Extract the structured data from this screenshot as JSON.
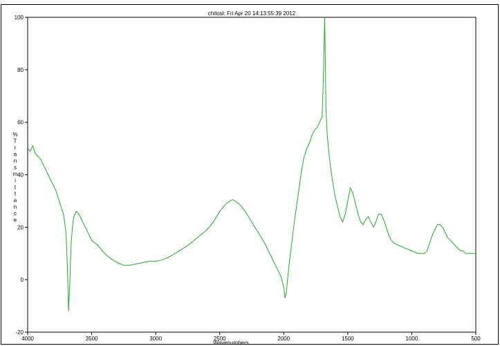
{
  "chart_data": {
    "type": "line",
    "title": "chitosl:  Fri Apr 20 14:13:55:39 2012",
    "xlabel": "Wavenumbers",
    "ylabel": "%Transmittance",
    "xlim": [
      4000,
      500
    ],
    "ylim": [
      -20,
      100
    ],
    "x_ticks": [
      4000,
      3500,
      3000,
      2500,
      2000,
      1500,
      1000,
      500
    ],
    "y_ticks": [
      -20,
      0,
      20,
      40,
      60,
      80,
      100
    ],
    "grid": false,
    "series_color": "#22aa22",
    "series": [
      {
        "x": [
          4000,
          3980,
          3960,
          3940,
          3920,
          3900,
          3880,
          3860,
          3840,
          3820,
          3800,
          3780,
          3760,
          3740,
          3720,
          3700,
          3690,
          3680,
          3670,
          3660,
          3650,
          3640,
          3620,
          3600,
          3580,
          3560,
          3540,
          3520,
          3500,
          3450,
          3400,
          3350,
          3300,
          3250,
          3200,
          3150,
          3100,
          3050,
          3000,
          2950,
          2900,
          2850,
          2800,
          2750,
          2700,
          2650,
          2600,
          2550,
          2500,
          2450,
          2420,
          2400,
          2380,
          2350,
          2300,
          2250,
          2200,
          2150,
          2100,
          2060,
          2040,
          2020,
          2000,
          1990,
          1980,
          1970,
          1960,
          1940,
          1920,
          1900,
          1880,
          1860,
          1840,
          1820,
          1800,
          1780,
          1760,
          1740,
          1720,
          1700,
          1690,
          1680,
          1670,
          1660,
          1650,
          1640,
          1620,
          1600,
          1580,
          1560,
          1540,
          1520,
          1500,
          1480,
          1460,
          1440,
          1420,
          1400,
          1380,
          1360,
          1340,
          1320,
          1300,
          1280,
          1260,
          1240,
          1220,
          1200,
          1180,
          1160,
          1140,
          1100,
          1050,
          1000,
          950,
          900,
          880,
          860,
          840,
          820,
          800,
          780,
          760,
          740,
          720,
          700,
          680,
          660,
          640,
          620,
          600,
          580,
          560,
          540,
          520,
          500
        ],
        "y": [
          50,
          49,
          51,
          48,
          47,
          46,
          44,
          42,
          40,
          38,
          36,
          34,
          31,
          28,
          25,
          18,
          5,
          -12,
          0,
          14,
          20,
          24,
          26,
          25,
          23,
          21,
          19,
          17,
          15,
          13,
          10,
          8,
          6.5,
          5.5,
          5.5,
          6,
          6.5,
          7,
          7,
          7.5,
          8.5,
          10,
          11.5,
          13,
          15,
          17,
          19,
          22,
          26,
          29,
          30,
          30.5,
          30,
          29,
          26,
          22,
          18,
          14,
          9,
          5,
          3,
          1,
          -3,
          -7,
          -5,
          0,
          5,
          13,
          21,
          28,
          35,
          42,
          47,
          50,
          52,
          55,
          57,
          58,
          60,
          62,
          78,
          100,
          65,
          55,
          50,
          45,
          38,
          32,
          28,
          24,
          22,
          25,
          30,
          35,
          33,
          29,
          25,
          22,
          21,
          23,
          24,
          22,
          20,
          22,
          25,
          25,
          23,
          20,
          17,
          15,
          14,
          13,
          12,
          11,
          10,
          10,
          11,
          14,
          17,
          19,
          21,
          21,
          20,
          18,
          16,
          15,
          14,
          13,
          12,
          11,
          11,
          10,
          10,
          10,
          10,
          10
        ]
      }
    ]
  }
}
